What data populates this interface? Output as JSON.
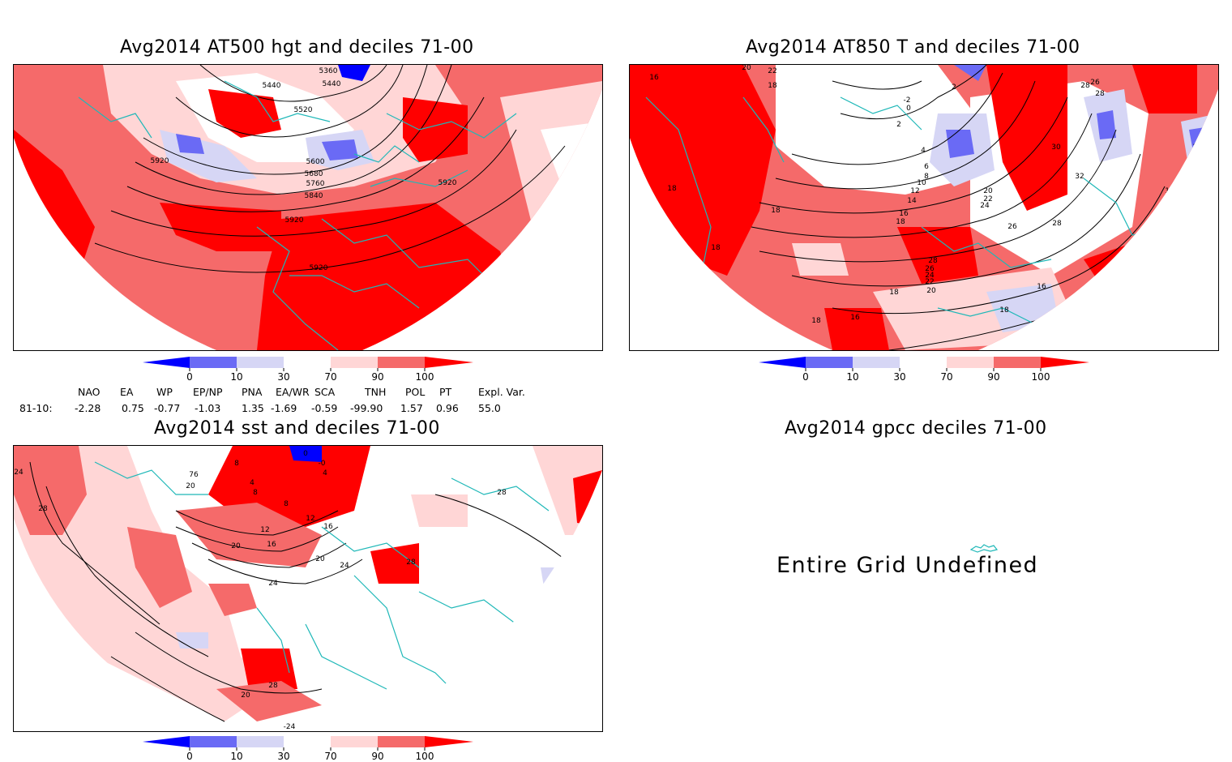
{
  "panels": [
    {
      "id": "at500",
      "title": "Avg2014 AT500 hgt and deciles 71-00",
      "contour_labels": [
        "5360",
        "5440",
        "5440",
        "5520",
        "5600",
        "5680",
        "5760",
        "5840",
        "5920",
        "5920",
        "5920",
        "5920"
      ]
    },
    {
      "id": "at850",
      "title": "Avg2014 AT850 T and deciles 71-00",
      "contour_labels": [
        "16",
        "20",
        "22",
        "18",
        "-2",
        "0",
        "2",
        "2",
        "4",
        "6",
        "8",
        "10",
        "12",
        "14",
        "16",
        "18",
        "18",
        "18",
        "18",
        "20",
        "22",
        "24",
        "26",
        "28",
        "28",
        "30",
        "32",
        "16",
        "16",
        "16",
        "18",
        "18",
        "16",
        "18",
        "20",
        "22",
        "24",
        "26",
        "28",
        "26",
        "28"
      ]
    },
    {
      "id": "sst",
      "title": "Avg2014 sst and deciles 71-00",
      "contour_labels": [
        "24",
        "28",
        "20",
        "76",
        "8",
        "4",
        "8",
        "8",
        "12",
        "12",
        "16",
        "16",
        "20",
        "20",
        "24",
        "24",
        "28",
        "28",
        "28",
        "28",
        "-24",
        "-0",
        "4",
        "0",
        "20"
      ]
    },
    {
      "id": "gpcc",
      "title": "Avg2014 gpcc deciles 71-00",
      "message": "Entire Grid Undefined"
    }
  ],
  "colorbar": {
    "tick_labels": [
      "0",
      "10",
      "30",
      "70",
      "90",
      "100"
    ],
    "colors": [
      "#0000ff",
      "#6a6af5",
      "#d6d6f5",
      "#ffffff",
      "#ffd6d6",
      "#f56a6a",
      "#ff0000"
    ]
  },
  "indices": {
    "headers": [
      "NAO",
      "EA",
      "WP",
      "EP/NP",
      "PNA",
      "EA/WR",
      "SCA",
      "TNH",
      "POL",
      "PT",
      "Expl. Var."
    ],
    "row_label": "81-10:",
    "values": [
      "-2.28",
      "0.75",
      "-0.77",
      "-1.03",
      "1.35",
      "-1.69",
      "-0.59",
      "-99.90",
      "1.57",
      "0.96",
      "55.0"
    ]
  }
}
